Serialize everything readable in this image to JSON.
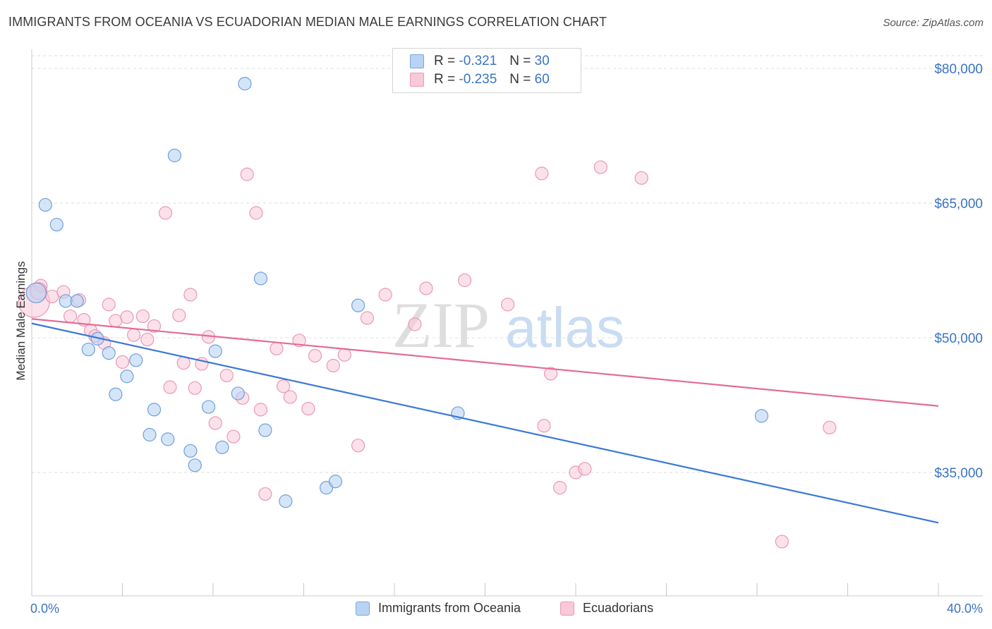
{
  "header": {
    "title": "IMMIGRANTS FROM OCEANIA VS ECUADORIAN MEDIAN MALE EARNINGS CORRELATION CHART",
    "source": "Source: ZipAtlas.com"
  },
  "legend": {
    "rows": [
      {
        "r_label": "R = ",
        "r_value": "-0.321",
        "n_label": "N = ",
        "n_value": "30",
        "color": "#a9c8f0"
      },
      {
        "r_label": "R = ",
        "r_value": "-0.235",
        "n_label": "N = ",
        "n_value": "60",
        "color": "#f6bdd0"
      }
    ]
  },
  "bottom_legend": {
    "series1": "Immigrants from Oceania",
    "series2": "Ecuadorians"
  },
  "watermark": {
    "zip": "ZIP",
    "atlas": "atlas"
  },
  "chart_data": {
    "type": "scatter",
    "title": "IMMIGRANTS FROM OCEANIA VS ECUADORIAN MEDIAN MALE EARNINGS CORRELATION CHART",
    "xlabel": "",
    "ylabel": "Median Male Earnings",
    "xlim": [
      0,
      40
    ],
    "ylim": [
      21000,
      82000
    ],
    "x_tick_labels": [
      "0.0%",
      "40.0%"
    ],
    "y_ticks": [
      35000,
      50000,
      65000,
      80000
    ],
    "y_tick_labels": [
      "$35,000",
      "$50,000",
      "$65,000",
      "$80,000"
    ],
    "grid": true,
    "legend_position": "top-center",
    "colors": {
      "oceania": "#3a78d6",
      "ecuadorians": "#e46b96",
      "oceania_fill": "#b9d3f3",
      "ecuadorians_fill": "#f8c9d8",
      "axis_text": "#3b74c4"
    },
    "series": [
      {
        "name": "Immigrants from Oceania",
        "trend": [
          [
            0,
            51600
          ],
          [
            40,
            29400
          ]
        ],
        "points": [
          [
            0.2,
            55000
          ],
          [
            0.6,
            64800
          ],
          [
            1.1,
            62600
          ],
          [
            1.5,
            54100
          ],
          [
            2.0,
            54100
          ],
          [
            2.5,
            48700
          ],
          [
            2.9,
            49900
          ],
          [
            3.4,
            48300
          ],
          [
            3.7,
            43700
          ],
          [
            4.2,
            45700
          ],
          [
            4.6,
            47500
          ],
          [
            5.2,
            39200
          ],
          [
            5.4,
            42000
          ],
          [
            6.0,
            38700
          ],
          [
            6.3,
            70300
          ],
          [
            7.0,
            37400
          ],
          [
            7.2,
            35800
          ],
          [
            7.8,
            42300
          ],
          [
            8.1,
            48500
          ],
          [
            8.4,
            37800
          ],
          [
            9.1,
            43800
          ],
          [
            9.4,
            78300
          ],
          [
            10.1,
            56600
          ],
          [
            10.3,
            39700
          ],
          [
            11.2,
            31800
          ],
          [
            13.0,
            33300
          ],
          [
            13.4,
            34000
          ],
          [
            14.4,
            53600
          ],
          [
            18.8,
            41600
          ],
          [
            32.2,
            41300
          ]
        ]
      },
      {
        "name": "Ecuadorians",
        "trend": [
          [
            0,
            52100
          ],
          [
            40,
            42400
          ]
        ],
        "points": [
          [
            0.1,
            54000
          ],
          [
            0.4,
            55800
          ],
          [
            0.9,
            54600
          ],
          [
            1.4,
            55100
          ],
          [
            1.7,
            52400
          ],
          [
            2.1,
            54200
          ],
          [
            2.3,
            52000
          ],
          [
            2.6,
            50800
          ],
          [
            2.8,
            50200
          ],
          [
            3.2,
            49400
          ],
          [
            3.4,
            53700
          ],
          [
            3.7,
            51900
          ],
          [
            4.0,
            47300
          ],
          [
            4.2,
            52300
          ],
          [
            4.5,
            50300
          ],
          [
            4.9,
            52400
          ],
          [
            5.1,
            49800
          ],
          [
            5.4,
            51300
          ],
          [
            5.9,
            63900
          ],
          [
            6.1,
            44500
          ],
          [
            6.5,
            52500
          ],
          [
            6.7,
            47200
          ],
          [
            7.0,
            54800
          ],
          [
            7.2,
            44400
          ],
          [
            7.5,
            47100
          ],
          [
            7.8,
            50100
          ],
          [
            8.1,
            40500
          ],
          [
            8.6,
            45800
          ],
          [
            8.9,
            39000
          ],
          [
            9.3,
            43300
          ],
          [
            9.5,
            68200
          ],
          [
            9.9,
            63900
          ],
          [
            10.1,
            42000
          ],
          [
            10.3,
            32600
          ],
          [
            10.8,
            48800
          ],
          [
            11.1,
            44600
          ],
          [
            11.4,
            43400
          ],
          [
            11.8,
            49700
          ],
          [
            12.2,
            42100
          ],
          [
            12.5,
            48000
          ],
          [
            13.3,
            46900
          ],
          [
            13.8,
            48100
          ],
          [
            14.4,
            38000
          ],
          [
            14.8,
            52200
          ],
          [
            15.6,
            54800
          ],
          [
            16.9,
            51500
          ],
          [
            17.4,
            55500
          ],
          [
            19.1,
            56400
          ],
          [
            21.0,
            53700
          ],
          [
            22.5,
            68300
          ],
          [
            22.9,
            46000
          ],
          [
            22.6,
            40200
          ],
          [
            23.3,
            33300
          ],
          [
            24.0,
            35000
          ],
          [
            24.4,
            35400
          ],
          [
            25.1,
            69000
          ],
          [
            26.9,
            67800
          ],
          [
            33.1,
            27300
          ],
          [
            35.2,
            40000
          ],
          [
            0.3,
            55200
          ]
        ]
      }
    ]
  }
}
